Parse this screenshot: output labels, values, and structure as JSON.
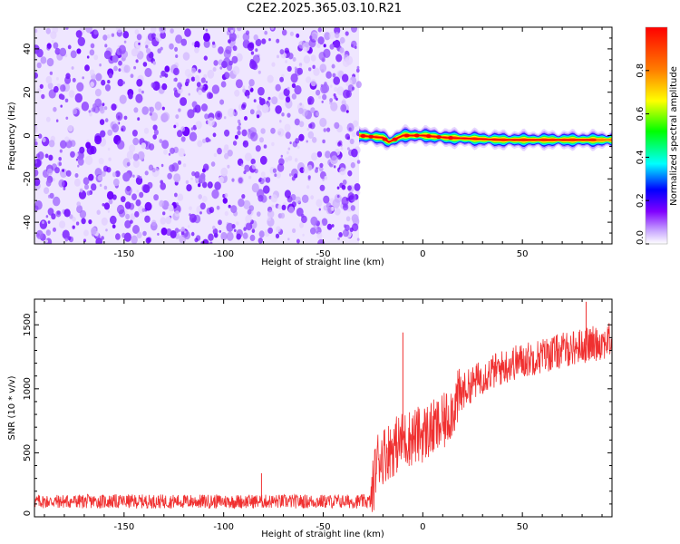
{
  "title": "C2E2.2025.365.03.10.R21",
  "colors": {
    "snr_line": "#f03030",
    "frame": "#000000",
    "noise_purple": "#7a2ef0",
    "colormap": [
      "#ffffff",
      "#c9a8ff",
      "#8000ff",
      "#0000ff",
      "#00ffff",
      "#00ff00",
      "#ffff00",
      "#ff8000",
      "#ff0000"
    ]
  },
  "chart_data": [
    {
      "type": "heatmap",
      "xlabel": "Height of straight line (km)",
      "ylabel": "Frequency (Hz)",
      "xlim": [
        -195,
        95
      ],
      "ylim": [
        -50,
        50
      ],
      "x_ticks": [
        -150,
        -100,
        -50,
        0,
        50
      ],
      "y_ticks": [
        -40,
        -20,
        0,
        20,
        40
      ],
      "noise_region_x": [
        -195,
        -32
      ],
      "signal_ridge": {
        "x_start": -32,
        "x_end": 95,
        "frequency": [
          {
            "x": -32,
            "y": 0
          },
          {
            "x": -20,
            "y": -1
          },
          {
            "x": -17,
            "y": -3
          },
          {
            "x": -10,
            "y": 0
          },
          {
            "x": 0,
            "y": 0
          },
          {
            "x": 12,
            "y": -1
          },
          {
            "x": 40,
            "y": -2
          },
          {
            "x": 95,
            "y": -2
          }
        ],
        "peak_amplitude": 1.0
      },
      "colorbar": {
        "label": "Normalized spectral amplitude",
        "range": [
          0,
          1
        ],
        "ticks": [
          "0.0",
          "0.2",
          "0.4",
          "0.6",
          "0.8"
        ]
      }
    },
    {
      "type": "line",
      "xlabel": "Height of straight line (km)",
      "ylabel": "SNR (10 * v/v)",
      "xlim": [
        -195,
        95
      ],
      "ylim": [
        0,
        1700
      ],
      "x_ticks": [
        -150,
        -100,
        -50,
        0,
        50
      ],
      "y_ticks": [
        0,
        500,
        1000,
        1500
      ],
      "series": [
        {
          "trend": [
            {
              "x": -195,
              "y": 120
            },
            {
              "x": -100,
              "y": 120
            },
            {
              "x": -26,
              "y": 120
            },
            {
              "x": -23,
              "y": 450
            },
            {
              "x": -10,
              "y": 600
            },
            {
              "x": 0,
              "y": 650
            },
            {
              "x": 10,
              "y": 720
            },
            {
              "x": 20,
              "y": 980
            },
            {
              "x": 30,
              "y": 1100
            },
            {
              "x": 45,
              "y": 1200
            },
            {
              "x": 60,
              "y": 1260
            },
            {
              "x": 75,
              "y": 1320
            },
            {
              "x": 95,
              "y": 1380
            }
          ],
          "spikes": [
            {
              "x": -81,
              "y": 340
            },
            {
              "x": -10,
              "y": 1440
            },
            {
              "x": 82,
              "y": 1680
            }
          ]
        }
      ]
    }
  ]
}
